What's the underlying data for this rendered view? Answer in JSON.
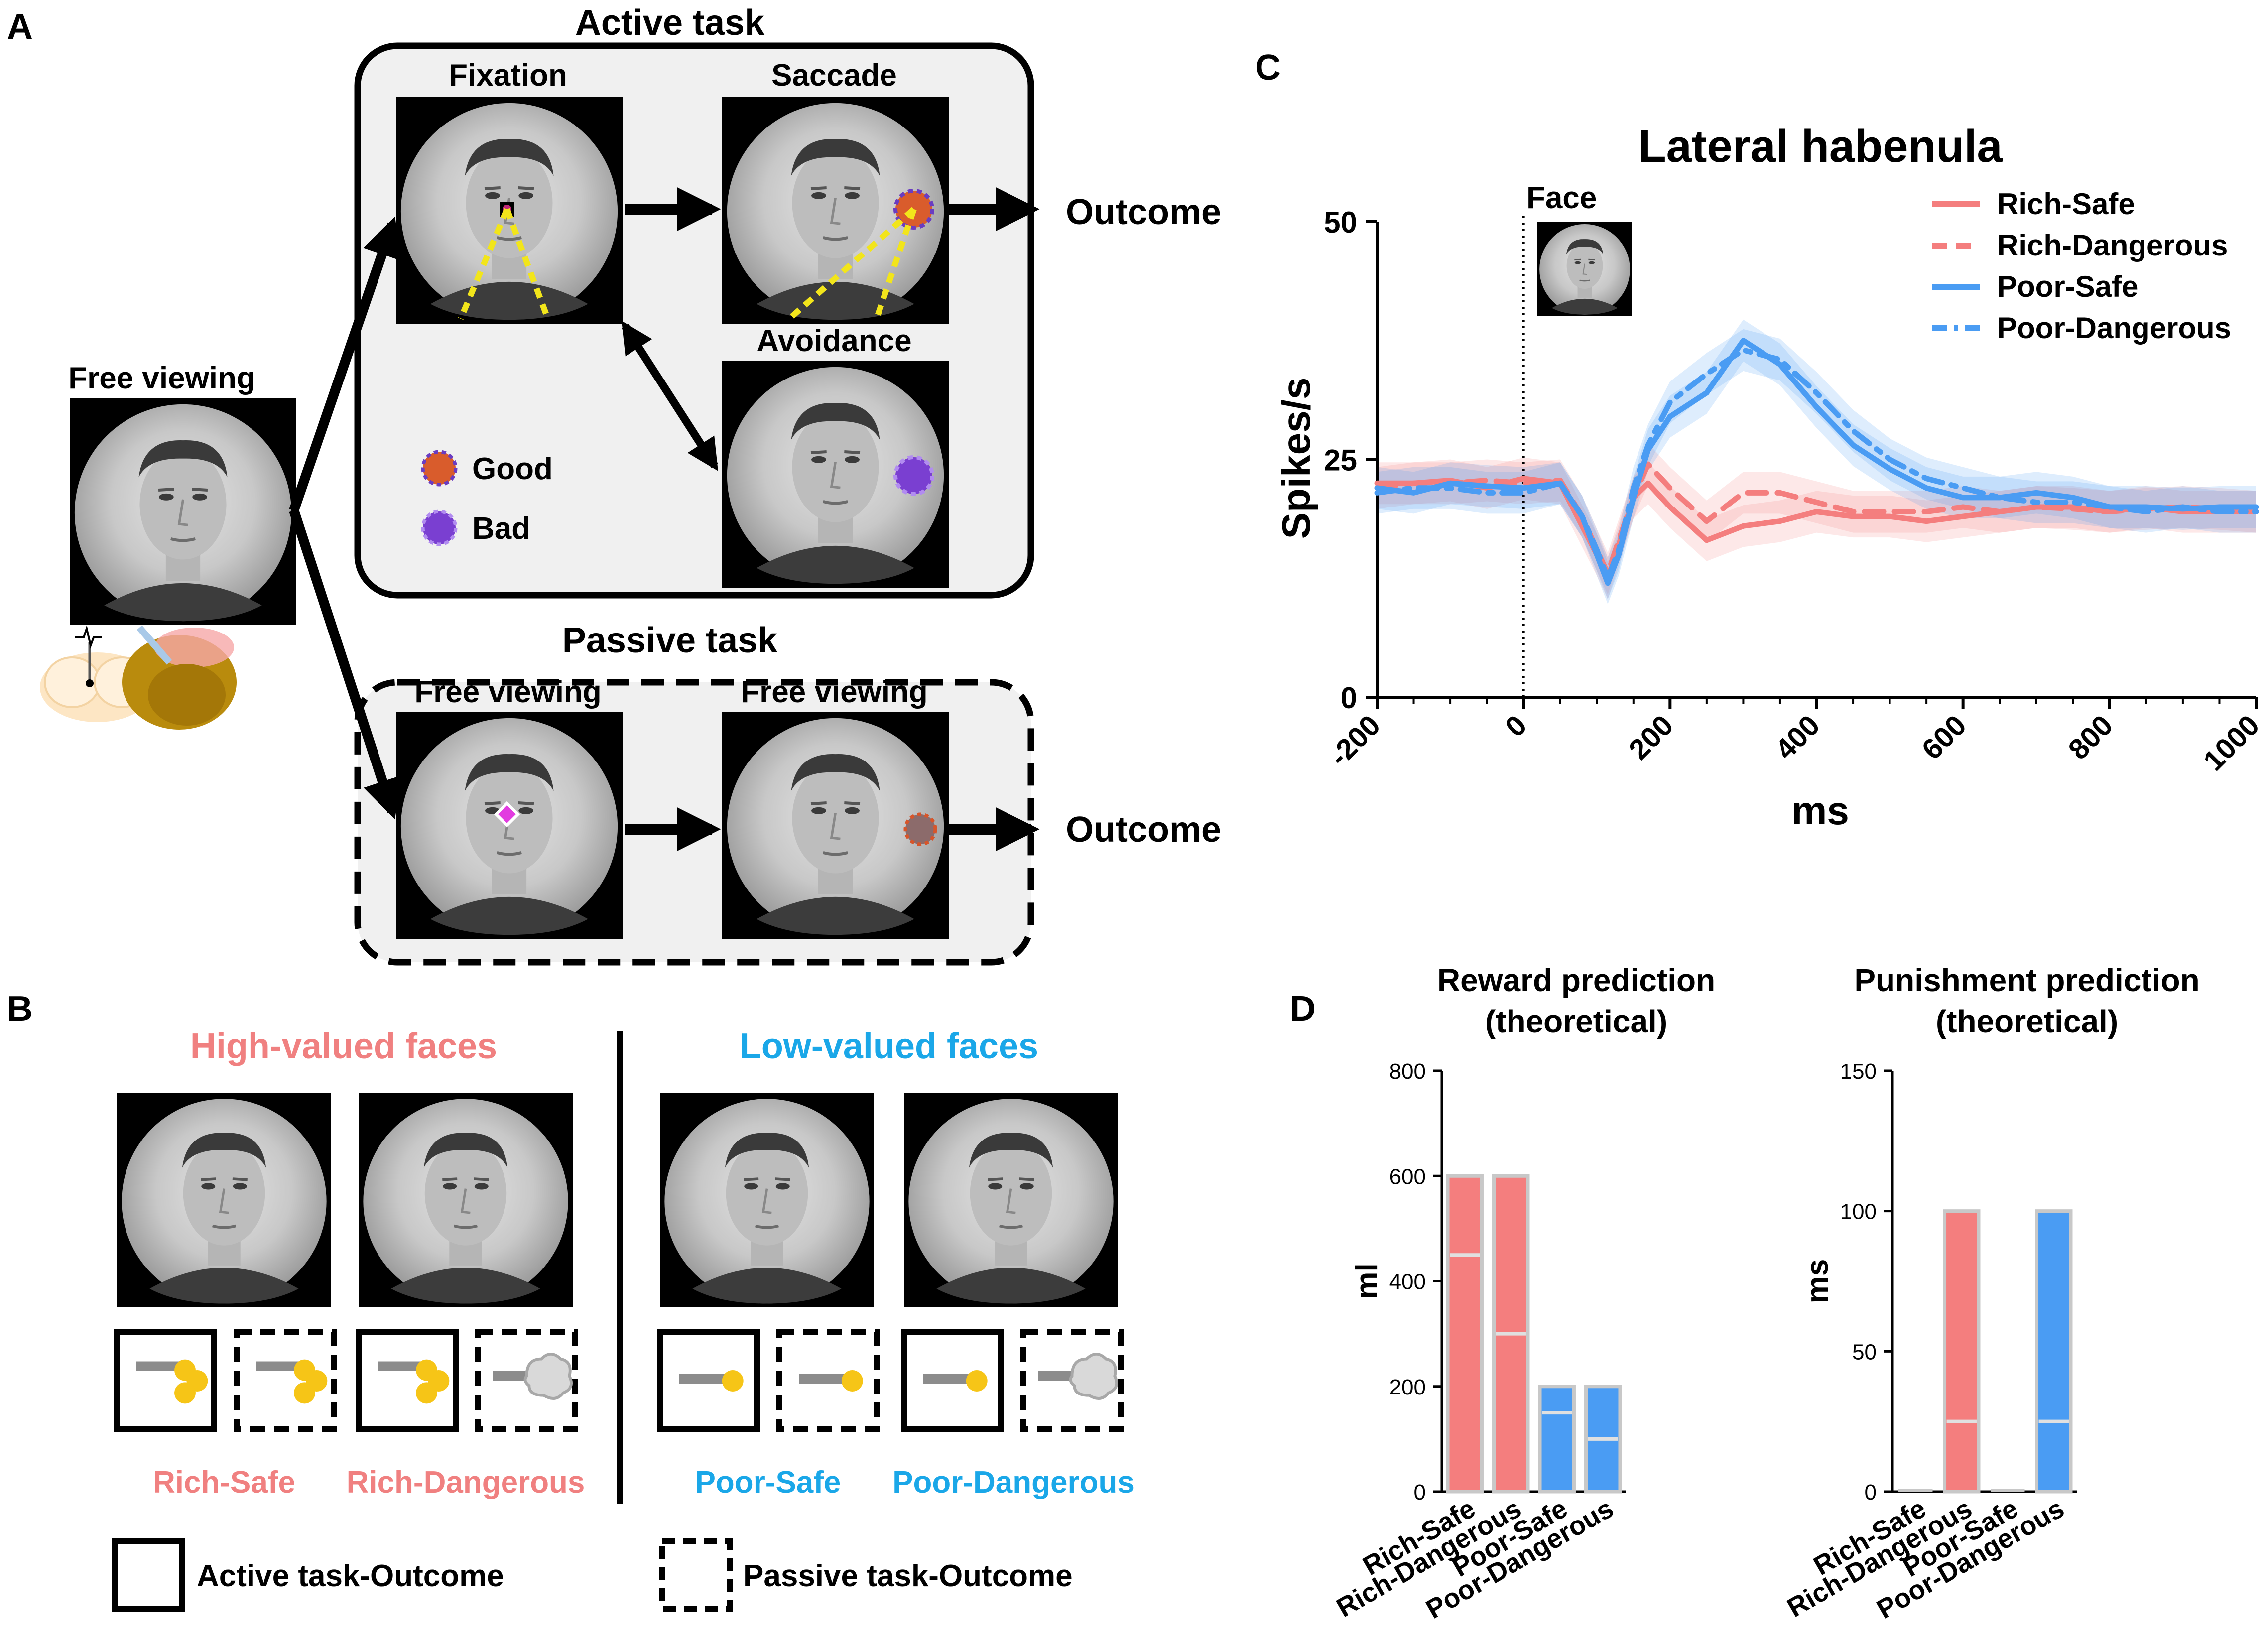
{
  "panels": {
    "A": "A",
    "B": "B",
    "C": "C",
    "D": "D"
  },
  "colors": {
    "rich": "#f47e7e",
    "poor": "#4a9cf3",
    "rich_text": "#f08080",
    "poor_text": "#1aa7e8",
    "box_fill": "#f0f0f0",
    "reward_yellow": "#f6c517",
    "good": "#d95c2c",
    "bad": "#7a3fd1"
  },
  "panel_a": {
    "active_title": "Active task",
    "passive_title": "Passive task",
    "free_viewing_label": "Free viewing",
    "fixation_label": "Fixation",
    "saccade_label": "Saccade",
    "avoidance_label": "Avoidance",
    "passive_left_label": "Free viewing",
    "passive_right_label": "Free viewing",
    "outcome_top": "Outcome",
    "outcome_bottom": "Outcome",
    "good_label": "Good",
    "bad_label": "Bad"
  },
  "panel_b": {
    "high_title": "High-valued faces",
    "low_title": "Low-valued faces",
    "faces": [
      "Rich-Safe",
      "Rich-Dangerous",
      "Poor-Safe",
      "Poor-Dangerous"
    ],
    "legend_active": "Active task-Outcome",
    "legend_passive": "Passive task-Outcome"
  },
  "panel_c": {
    "chart_data": {
      "type": "line",
      "title": "Lateral habenula",
      "xlabel": "ms",
      "ylabel": "Spikes/s",
      "xlim": [
        -200,
        1000
      ],
      "ylim": [
        0,
        50
      ],
      "xticks": [
        "-200",
        "0",
        "200",
        "400",
        "600",
        "800",
        "1000"
      ],
      "yticks": [
        "0",
        "25",
        "50"
      ],
      "event_label": "Face",
      "event_x": 0,
      "x": [
        -200,
        -150,
        -100,
        -50,
        0,
        50,
        80,
        100,
        115,
        130,
        150,
        170,
        200,
        250,
        300,
        350,
        400,
        450,
        500,
        550,
        600,
        650,
        700,
        750,
        800,
        850,
        900,
        950,
        1000
      ],
      "series": [
        {
          "name": "Rich-Safe",
          "style": "solid",
          "color": "rich",
          "values": [
            22.5,
            22.5,
            22.8,
            22,
            23,
            22.5,
            18,
            15,
            12.5,
            16,
            21,
            22.5,
            20,
            16.5,
            18,
            18.5,
            19.5,
            19,
            19,
            18.5,
            19,
            19.5,
            20,
            20,
            19.5,
            20,
            19.5,
            19.5,
            19.5
          ]
        },
        {
          "name": "Rich-Dangerous",
          "style": "dashed",
          "color": "rich",
          "values": [
            22,
            22.5,
            22.5,
            22.8,
            22.5,
            22.8,
            19,
            15.5,
            13,
            16.5,
            21,
            24.5,
            22,
            18.5,
            21.5,
            21.5,
            20.5,
            19.5,
            19.5,
            19.5,
            20,
            19.5,
            20,
            19.8,
            19.5,
            19.8,
            20,
            19.8,
            19.5
          ]
        },
        {
          "name": "Poor-Safe",
          "style": "solid",
          "color": "poor",
          "values": [
            22,
            21.5,
            22.5,
            22.2,
            22,
            22.5,
            19,
            15,
            12,
            15,
            21,
            26,
            29.5,
            32,
            37.5,
            35,
            30.5,
            26.5,
            24,
            22,
            21,
            21,
            21.5,
            21,
            20,
            20,
            19.8,
            20,
            20
          ]
        },
        {
          "name": "Poor-Dangerous",
          "style": "dashdot",
          "color": "poor",
          "values": [
            21.5,
            22,
            22,
            21.5,
            21.5,
            22.5,
            19,
            15.5,
            12.5,
            15.5,
            22,
            26.5,
            31,
            34,
            36.5,
            35.5,
            32,
            28,
            25,
            23,
            22,
            21,
            20.5,
            20.5,
            20,
            19.5,
            20,
            19.5,
            19.5
          ]
        }
      ],
      "sem": 2.2,
      "legend": [
        "Rich-Safe",
        "Rich-Dangerous",
        "Poor-Safe",
        "Poor-Dangerous"
      ]
    }
  },
  "panel_d": {
    "chart_data": [
      {
        "type": "bar",
        "title": "Reward prediction",
        "subtitle": "(theoretical)",
        "ylabel": "ml",
        "ylim": [
          0,
          800
        ],
        "yticks": [
          "0",
          "200",
          "400",
          "600",
          "800"
        ],
        "categories": [
          "Rich-Safe",
          "Rich-Dangerous",
          "Poor-Safe",
          "Poor-Dangerous"
        ],
        "values": [
          600,
          600,
          200,
          200
        ],
        "inner_lines": [
          450,
          300,
          150,
          100
        ],
        "bar_colors": [
          "rich",
          "rich",
          "poor",
          "poor"
        ]
      },
      {
        "type": "bar",
        "title": "Punishment prediction",
        "subtitle": "(theoretical)",
        "ylabel": "ms",
        "ylim": [
          0,
          150
        ],
        "yticks": [
          "0",
          "50",
          "100",
          "150"
        ],
        "categories": [
          "Rich-Safe",
          "Rich-Dangerous",
          "Poor-Safe",
          "Poor-Dangerous"
        ],
        "values": [
          0,
          100,
          0,
          100
        ],
        "inner_lines": [
          null,
          25,
          null,
          25
        ],
        "bar_colors": [
          "rich",
          "rich",
          "poor",
          "poor"
        ]
      }
    ]
  }
}
